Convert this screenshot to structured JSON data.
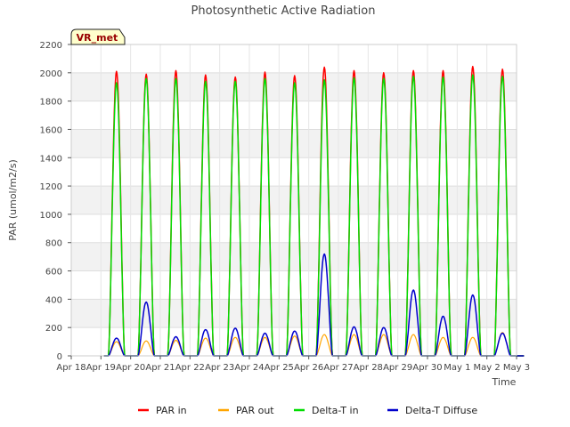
{
  "chart_data": {
    "type": "line",
    "title": "Photosynthetic Active Radiation",
    "xlabel": "Time",
    "ylabel": "PAR (umol/m2/s)",
    "ylim": [
      0,
      2200
    ],
    "y_ticks": [
      0,
      200,
      400,
      600,
      800,
      1000,
      1200,
      1400,
      1600,
      1800,
      2000,
      2200
    ],
    "xlim": [
      0,
      15
    ],
    "x_ticks": [
      {
        "pos": 0,
        "label": "Apr 18"
      },
      {
        "pos": 1,
        "label": "Apr 19"
      },
      {
        "pos": 2,
        "label": "Apr 20"
      },
      {
        "pos": 3,
        "label": "Apr 21"
      },
      {
        "pos": 4,
        "label": "Apr 22"
      },
      {
        "pos": 5,
        "label": "Apr 23"
      },
      {
        "pos": 6,
        "label": "Apr 24"
      },
      {
        "pos": 7,
        "label": "Apr 25"
      },
      {
        "pos": 8,
        "label": "Apr 26"
      },
      {
        "pos": 9,
        "label": "Apr 27"
      },
      {
        "pos": 10,
        "label": "Apr 28"
      },
      {
        "pos": 11,
        "label": "Apr 29"
      },
      {
        "pos": 12,
        "label": "Apr 30"
      },
      {
        "pos": 13,
        "label": "May 1"
      },
      {
        "pos": 14,
        "label": "May 2"
      },
      {
        "pos": 15,
        "label": "May 3"
      }
    ],
    "site_label": "VR_met",
    "daylight_window_days": [
      0.25,
      0.8
    ],
    "daily_peak_day_offset": 0.5,
    "x_start_day": 0.5,
    "x_end_day": 14.5,
    "series": [
      {
        "name": "PAR in",
        "color": "#ff0000",
        "daily_peaks": [
          2010,
          1990,
          2015,
          1985,
          1970,
          2005,
          1980,
          2040,
          2015,
          2000,
          2015,
          2015,
          2045,
          2025
        ]
      },
      {
        "name": "PAR out",
        "color": "#ffa500",
        "daily_peaks": [
          100,
          105,
          110,
          125,
          130,
          130,
          140,
          150,
          150,
          150,
          150,
          130,
          130,
          165
        ]
      },
      {
        "name": "Delta-T in",
        "color": "#00dd00",
        "daily_peaks": [
          1930,
          1960,
          1960,
          1940,
          1940,
          1960,
          1930,
          1950,
          1965,
          1960,
          1975,
          1970,
          1985,
          1975
        ]
      },
      {
        "name": "Delta-T Diffuse",
        "color": "#0000cc",
        "daily_peaks": [
          125,
          380,
          135,
          185,
          195,
          160,
          175,
          720,
          205,
          200,
          465,
          280,
          430,
          160
        ]
      }
    ]
  }
}
